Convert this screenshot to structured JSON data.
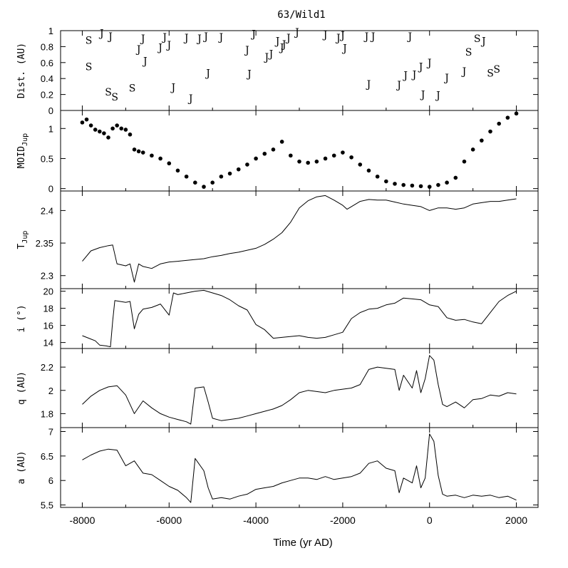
{
  "chart_data": {
    "title": "63/Wild1",
    "xlabel": "Time (yr AD)",
    "xlim": [
      -8500,
      2500
    ],
    "xticks": [
      -8000,
      -6000,
      -4000,
      -2000,
      0,
      2000
    ],
    "xtick_labels": [
      "-8000",
      "-6000",
      "-4000",
      "-2000",
      "0",
      "2000"
    ],
    "panels": [
      {
        "id": "dist",
        "type": "scatter",
        "ylabel": "Dist. (AU)",
        "ylim": [
          0,
          1
        ],
        "yticks": [
          0,
          0.2,
          0.4,
          0.6,
          0.8,
          1
        ],
        "ytick_labels": [
          "0",
          "0.2",
          "0.4",
          "0.6",
          "0.8",
          "1"
        ],
        "encounters": [
          {
            "x": -7850,
            "y": 0.88,
            "label": "S"
          },
          {
            "x": -7850,
            "y": 0.55,
            "label": "S"
          },
          {
            "x": -7550,
            "y": 0.97,
            "label": "J"
          },
          {
            "x": -7350,
            "y": 0.93,
            "label": "J"
          },
          {
            "x": -7400,
            "y": 0.23,
            "label": "S"
          },
          {
            "x": -7250,
            "y": 0.17,
            "label": "S"
          },
          {
            "x": -6850,
            "y": 0.28,
            "label": "S"
          },
          {
            "x": -6700,
            "y": 0.77,
            "label": "J"
          },
          {
            "x": -6600,
            "y": 0.9,
            "label": "J"
          },
          {
            "x": -6550,
            "y": 0.62,
            "label": "J"
          },
          {
            "x": -6200,
            "y": 0.79,
            "label": "J"
          },
          {
            "x": -6100,
            "y": 0.92,
            "label": "J"
          },
          {
            "x": -6000,
            "y": 0.82,
            "label": "J"
          },
          {
            "x": -5900,
            "y": 0.29,
            "label": "J"
          },
          {
            "x": -5600,
            "y": 0.91,
            "label": "J"
          },
          {
            "x": -5500,
            "y": 0.15,
            "label": "J"
          },
          {
            "x": -5300,
            "y": 0.9,
            "label": "J"
          },
          {
            "x": -5150,
            "y": 0.93,
            "label": "J"
          },
          {
            "x": -5100,
            "y": 0.47,
            "label": "J"
          },
          {
            "x": -4800,
            "y": 0.92,
            "label": "J"
          },
          {
            "x": -4200,
            "y": 0.76,
            "label": "J"
          },
          {
            "x": -4150,
            "y": 0.46,
            "label": "J"
          },
          {
            "x": -4050,
            "y": 0.96,
            "label": "J"
          },
          {
            "x": -3750,
            "y": 0.67,
            "label": "J"
          },
          {
            "x": -3650,
            "y": 0.71,
            "label": "J"
          },
          {
            "x": -3500,
            "y": 0.87,
            "label": "J"
          },
          {
            "x": -3400,
            "y": 0.79,
            "label": "J"
          },
          {
            "x": -3350,
            "y": 0.83,
            "label": "J"
          },
          {
            "x": -3250,
            "y": 0.91,
            "label": "J"
          },
          {
            "x": -3050,
            "y": 0.98,
            "label": "J"
          },
          {
            "x": -2400,
            "y": 0.95,
            "label": "J"
          },
          {
            "x": -2100,
            "y": 0.91,
            "label": "J"
          },
          {
            "x": -2000,
            "y": 0.94,
            "label": "J"
          },
          {
            "x": -1950,
            "y": 0.78,
            "label": "J"
          },
          {
            "x": -1450,
            "y": 0.93,
            "label": "J"
          },
          {
            "x": -1400,
            "y": 0.33,
            "label": "J"
          },
          {
            "x": -1300,
            "y": 0.93,
            "label": "J"
          },
          {
            "x": -700,
            "y": 0.32,
            "label": "J"
          },
          {
            "x": -550,
            "y": 0.44,
            "label": "J"
          },
          {
            "x": -450,
            "y": 0.93,
            "label": "J"
          },
          {
            "x": -350,
            "y": 0.45,
            "label": "J"
          },
          {
            "x": -200,
            "y": 0.55,
            "label": "J"
          },
          {
            "x": -150,
            "y": 0.2,
            "label": "J"
          },
          {
            "x": 0,
            "y": 0.6,
            "label": "J"
          },
          {
            "x": 200,
            "y": 0.19,
            "label": "J"
          },
          {
            "x": 400,
            "y": 0.41,
            "label": "J"
          },
          {
            "x": 800,
            "y": 0.49,
            "label": "J"
          },
          {
            "x": 900,
            "y": 0.73,
            "label": "S"
          },
          {
            "x": 1100,
            "y": 0.9,
            "label": "S"
          },
          {
            "x": 1250,
            "y": 0.87,
            "label": "J"
          },
          {
            "x": 1400,
            "y": 0.47,
            "label": "S"
          },
          {
            "x": 1550,
            "y": 0.52,
            "label": "S"
          }
        ]
      },
      {
        "id": "moid",
        "type": "scatter",
        "ylabel": "MOID",
        "ylabel_sub": "Jup",
        "ylim": [
          -0.04,
          1.3
        ],
        "yticks": [
          0,
          0.5,
          1
        ],
        "ytick_labels": [
          "0",
          "0.5",
          "1"
        ],
        "x": [
          -8000,
          -7900,
          -7800,
          -7700,
          -7600,
          -7500,
          -7400,
          -7300,
          -7200,
          -7100,
          -7000,
          -6900,
          -6800,
          -6700,
          -6600,
          -6400,
          -6200,
          -6000,
          -5800,
          -5600,
          -5400,
          -5200,
          -5000,
          -4800,
          -4600,
          -4400,
          -4200,
          -4000,
          -3800,
          -3600,
          -3400,
          -3200,
          -3000,
          -2800,
          -2600,
          -2400,
          -2200,
          -2000,
          -1800,
          -1600,
          -1400,
          -1200,
          -1000,
          -800,
          -600,
          -400,
          -200,
          0,
          200,
          400,
          600,
          800,
          1000,
          1200,
          1400,
          1600,
          1800,
          2000
        ],
        "y": [
          1.1,
          1.15,
          1.05,
          0.98,
          0.95,
          0.92,
          0.85,
          1.0,
          1.05,
          1.0,
          0.98,
          0.9,
          0.65,
          0.62,
          0.6,
          0.55,
          0.5,
          0.42,
          0.3,
          0.2,
          0.1,
          0.03,
          0.1,
          0.2,
          0.25,
          0.32,
          0.4,
          0.5,
          0.58,
          0.65,
          0.78,
          0.55,
          0.45,
          0.43,
          0.45,
          0.5,
          0.55,
          0.6,
          0.52,
          0.4,
          0.3,
          0.2,
          0.12,
          0.08,
          0.06,
          0.05,
          0.04,
          0.03,
          0.06,
          0.1,
          0.18,
          0.45,
          0.65,
          0.8,
          0.95,
          1.08,
          1.18,
          1.25
        ]
      },
      {
        "id": "tjup",
        "type": "line",
        "ylabel": "T",
        "ylabel_sub": "Jup",
        "ylim": [
          2.28,
          2.43
        ],
        "yticks": [
          2.3,
          2.35,
          2.4
        ],
        "ytick_labels": [
          "2.3",
          "2.35",
          "2.4"
        ],
        "x": [
          -8000,
          -7800,
          -7600,
          -7400,
          -7300,
          -7200,
          -7000,
          -6900,
          -6800,
          -6700,
          -6600,
          -6400,
          -6200,
          -6000,
          -5800,
          -5500,
          -5200,
          -5000,
          -4800,
          -4600,
          -4400,
          -4000,
          -3800,
          -3600,
          -3400,
          -3200,
          -3000,
          -2800,
          -2600,
          -2400,
          -2200,
          -2000,
          -1900,
          -1800,
          -1600,
          -1400,
          -1200,
          -1000,
          -800,
          -600,
          -400,
          -200,
          0,
          200,
          400,
          600,
          800,
          1000,
          1200,
          1400,
          1600,
          1800,
          2000
        ],
        "y": [
          2.322,
          2.338,
          2.343,
          2.346,
          2.347,
          2.318,
          2.315,
          2.318,
          2.29,
          2.318,
          2.314,
          2.311,
          2.318,
          2.321,
          2.322,
          2.324,
          2.326,
          2.329,
          2.331,
          2.334,
          2.336,
          2.342,
          2.348,
          2.356,
          2.366,
          2.382,
          2.404,
          2.415,
          2.421,
          2.423,
          2.416,
          2.408,
          2.402,
          2.406,
          2.414,
          2.417,
          2.416,
          2.416,
          2.413,
          2.41,
          2.408,
          2.406,
          2.4,
          2.404,
          2.404,
          2.402,
          2.404,
          2.41,
          2.412,
          2.414,
          2.414,
          2.416,
          2.418
        ]
      },
      {
        "id": "incl",
        "type": "line",
        "ylabel": "i (°)",
        "ylim": [
          13.3,
          20.3
        ],
        "yticks": [
          14,
          16,
          18,
          20
        ],
        "ytick_labels": [
          "14",
          "16",
          "18",
          "20"
        ],
        "x": [
          -8000,
          -7700,
          -7600,
          -7450,
          -7350,
          -7300,
          -7250,
          -7000,
          -6900,
          -6800,
          -6700,
          -6600,
          -6400,
          -6200,
          -6000,
          -5900,
          -5800,
          -5600,
          -5400,
          -5200,
          -5000,
          -4800,
          -4600,
          -4400,
          -4200,
          -4000,
          -3800,
          -3600,
          -3400,
          -3000,
          -2800,
          -2600,
          -2400,
          -2200,
          -2000,
          -1800,
          -1600,
          -1400,
          -1200,
          -1000,
          -800,
          -600,
          -400,
          -200,
          0,
          200,
          400,
          600,
          800,
          1000,
          1200,
          1400,
          1600,
          1800,
          2000
        ],
        "y": [
          14.8,
          14.2,
          13.7,
          13.6,
          13.5,
          16.5,
          18.9,
          18.7,
          18.8,
          15.6,
          17.3,
          17.9,
          18.1,
          18.5,
          17.2,
          19.8,
          19.6,
          19.8,
          20.0,
          20.1,
          19.8,
          19.5,
          19.0,
          18.3,
          17.8,
          16.1,
          15.5,
          14.5,
          14.6,
          14.8,
          14.6,
          14.5,
          14.6,
          14.9,
          15.2,
          16.8,
          17.5,
          17.9,
          18.0,
          18.4,
          18.6,
          19.2,
          19.1,
          19.0,
          18.4,
          18.2,
          16.9,
          16.6,
          16.7,
          16.4,
          16.2,
          17.5,
          18.8,
          19.5,
          20.0
        ]
      },
      {
        "id": "q",
        "type": "line",
        "ylabel": "q (AU)",
        "ylim": [
          1.68,
          2.36
        ],
        "yticks": [
          1.8,
          2,
          2.2
        ],
        "ytick_labels": [
          "1.8",
          "2",
          "2.2"
        ],
        "x": [
          -8000,
          -7800,
          -7600,
          -7400,
          -7200,
          -7000,
          -6800,
          -6600,
          -6400,
          -6200,
          -6000,
          -5800,
          -5600,
          -5500,
          -5400,
          -5200,
          -5100,
          -5000,
          -4800,
          -4600,
          -4400,
          -4200,
          -4000,
          -3800,
          -3600,
          -3400,
          -3200,
          -3000,
          -2800,
          -2600,
          -2400,
          -2200,
          -2000,
          -1800,
          -1600,
          -1400,
          -1200,
          -1000,
          -800,
          -700,
          -600,
          -400,
          -300,
          -200,
          -100,
          0,
          100,
          200,
          300,
          400,
          600,
          800,
          1000,
          1200,
          1400,
          1600,
          1800,
          2000
        ],
        "y": [
          1.88,
          1.95,
          2.0,
          2.03,
          2.04,
          1.96,
          1.8,
          1.91,
          1.85,
          1.8,
          1.77,
          1.75,
          1.73,
          1.71,
          2.02,
          2.03,
          1.9,
          1.76,
          1.74,
          1.75,
          1.76,
          1.78,
          1.8,
          1.82,
          1.84,
          1.87,
          1.92,
          1.98,
          2.0,
          1.99,
          1.98,
          2.0,
          2.01,
          2.02,
          2.05,
          2.18,
          2.2,
          2.19,
          2.18,
          2.0,
          2.13,
          2.02,
          2.17,
          1.98,
          2.1,
          2.3,
          2.26,
          2.05,
          1.88,
          1.86,
          1.9,
          1.85,
          1.92,
          1.93,
          1.96,
          1.95,
          1.98,
          1.97
        ]
      },
      {
        "id": "a",
        "type": "line",
        "ylabel": "a (AU)",
        "ylim": [
          5.45,
          7.08
        ],
        "yticks": [
          5.5,
          6,
          6.5,
          7
        ],
        "ytick_labels": [
          "5.5",
          "6",
          "6.5",
          "7"
        ],
        "x": [
          -8000,
          -7800,
          -7600,
          -7400,
          -7200,
          -7000,
          -6800,
          -6600,
          -6400,
          -6200,
          -6000,
          -5800,
          -5600,
          -5500,
          -5400,
          -5200,
          -5100,
          -5000,
          -4800,
          -4600,
          -4400,
          -4200,
          -4000,
          -3800,
          -3600,
          -3400,
          -3200,
          -3000,
          -2800,
          -2600,
          -2400,
          -2200,
          -2000,
          -1800,
          -1600,
          -1400,
          -1200,
          -1000,
          -800,
          -700,
          -600,
          -400,
          -300,
          -200,
          -100,
          0,
          100,
          200,
          300,
          400,
          600,
          800,
          1000,
          1200,
          1400,
          1600,
          1800,
          2000
        ],
        "y": [
          6.42,
          6.52,
          6.6,
          6.64,
          6.62,
          6.3,
          6.4,
          6.15,
          6.12,
          6.0,
          5.88,
          5.8,
          5.65,
          5.55,
          6.45,
          6.2,
          5.85,
          5.62,
          5.65,
          5.62,
          5.68,
          5.72,
          5.82,
          5.85,
          5.88,
          5.95,
          6.0,
          6.05,
          6.05,
          6.02,
          6.08,
          6.02,
          6.05,
          6.08,
          6.15,
          6.35,
          6.4,
          6.25,
          6.2,
          5.75,
          6.05,
          5.95,
          6.3,
          5.85,
          6.05,
          6.95,
          6.8,
          6.1,
          5.72,
          5.68,
          5.7,
          5.65,
          5.7,
          5.68,
          5.7,
          5.65,
          5.68,
          5.6
        ]
      }
    ]
  }
}
